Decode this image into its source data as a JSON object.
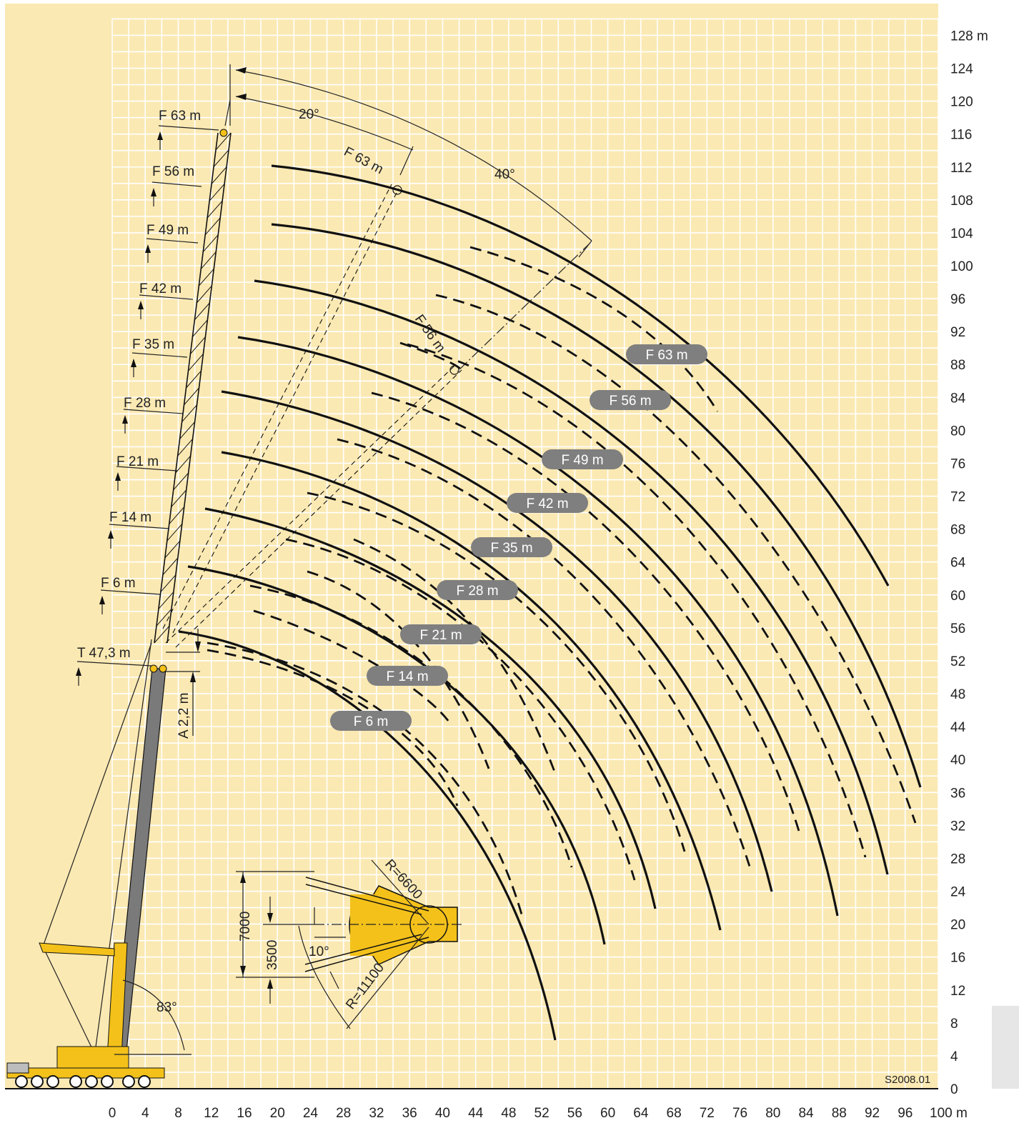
{
  "diagram": {
    "drawing_id": "S2008.01",
    "colors": {
      "background": "#fbe9b3",
      "grid": "#ffffff",
      "pill": "#7f7f7f",
      "crane": "#f3c11a",
      "outrigger": "#fbbf14"
    },
    "x_axis": {
      "ticks": [
        "0",
        "4",
        "8",
        "12",
        "16",
        "20",
        "24",
        "28",
        "32",
        "36",
        "40",
        "44",
        "48",
        "52",
        "56",
        "60",
        "64",
        "68",
        "72",
        "76",
        "80",
        "84",
        "88",
        "92",
        "96",
        "100 m"
      ]
    },
    "y_axis": {
      "ticks": [
        "0",
        "4",
        "8",
        "12",
        "16",
        "20",
        "24",
        "28",
        "32",
        "36",
        "40",
        "44",
        "48",
        "52",
        "56",
        "60",
        "64",
        "68",
        "72",
        "76",
        "80",
        "84",
        "88",
        "92",
        "96",
        "100",
        "104",
        "108",
        "112",
        "116",
        "120",
        "124",
        "128 m"
      ]
    },
    "curve_labels": [
      "F 63 m",
      "F 56 m",
      "F 49 m",
      "F 42 m",
      "F 35 m",
      "F 28 m",
      "F 21 m",
      "F 14 m",
      "F 6 m"
    ],
    "jib_labels": [
      "F 63 m",
      "F 56 m",
      "F 49 m",
      "F 42 m",
      "F 35 m",
      "F 28 m",
      "F 21 m",
      "F 14 m",
      "F 6 m",
      "T 47,3 m"
    ],
    "annotations": {
      "angle_20": "20°",
      "angle_40": "40°",
      "angle_83": "83°",
      "adapter": "A 2,2 m",
      "luffed_63": "F 63 m",
      "luffed_56": "F 56 m"
    },
    "outrigger_plan": {
      "dim_7000": "7000",
      "dim_3500": "3500",
      "angle_10": "10°",
      "radius_6600": "R=6600",
      "radius_11100": "R=11100"
    }
  }
}
